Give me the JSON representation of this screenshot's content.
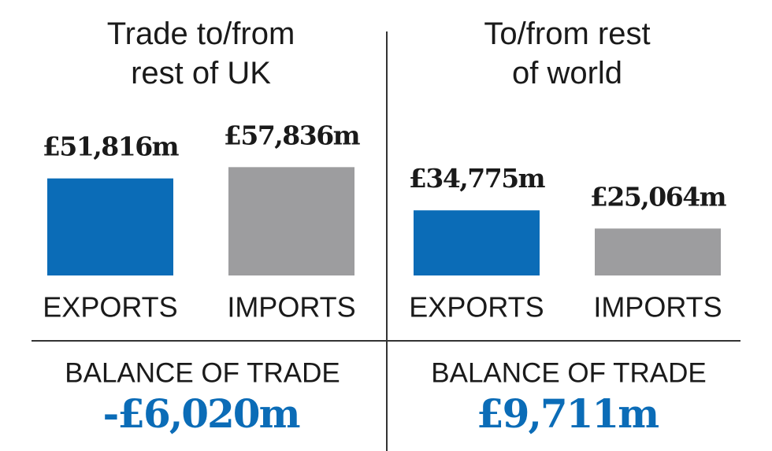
{
  "chart_data": [
    {
      "type": "bar",
      "title": "Trade to/from rest of UK",
      "categories": [
        "EXPORTS",
        "IMPORTS"
      ],
      "values": [
        51816,
        57836
      ],
      "value_labels": [
        "£51,816m",
        "£57,836m"
      ],
      "colors": [
        "#0b6cb7",
        "#9d9d9f"
      ],
      "balance_title": "BALANCE OF TRADE",
      "balance_value": -6020,
      "balance_value_label": "-£6,020m",
      "balance_color": "#0b6cb7"
    },
    {
      "type": "bar",
      "title": "To/from rest of world",
      "categories": [
        "EXPORTS",
        "IMPORTS"
      ],
      "values": [
        34775,
        25064
      ],
      "value_labels": [
        "£34,775m",
        "£25,064m"
      ],
      "colors": [
        "#0b6cb7",
        "#9d9d9f"
      ],
      "balance_title": "BALANCE OF TRADE",
      "balance_value": 9711,
      "balance_value_label": "£9,711m",
      "balance_color": "#0b6cb7"
    }
  ]
}
